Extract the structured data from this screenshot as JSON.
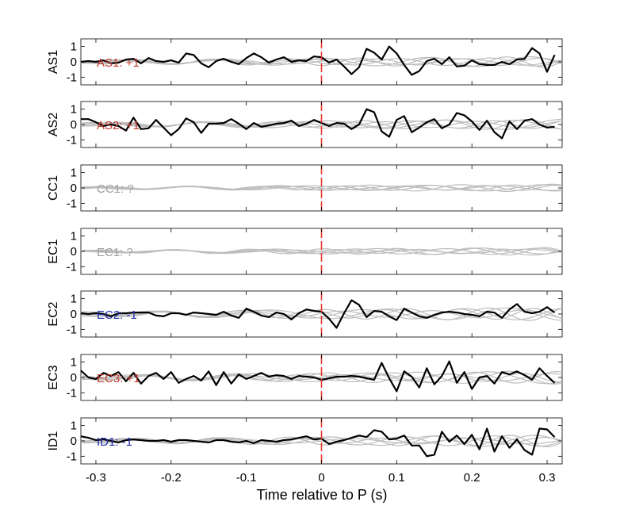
{
  "chart_data": {
    "type": "line",
    "xlabel": "Time relative to P (s)",
    "xlim": [
      -0.32,
      0.32
    ],
    "xticks": [
      -0.3,
      -0.2,
      -0.1,
      0,
      0.1,
      0.2,
      0.3
    ],
    "xtick_labels": [
      "-0.3",
      "-0.2",
      "-0.1",
      "0",
      "0.1",
      "0.2",
      "0.3"
    ],
    "ylim": [
      -1.5,
      1.5
    ],
    "yticks": [
      -1,
      0,
      1
    ],
    "ytick_labels": [
      "-1",
      "0",
      "1"
    ],
    "marker_x": 0,
    "colors": {
      "trace": "#000000",
      "background_traces": "#bdbdbd",
      "marker": "#e8392b",
      "positive": "#c0392b",
      "negative": "#1f2fb0",
      "unknown": "#9e9e9e"
    },
    "panels": [
      {
        "station": "AS1",
        "annotation": "AS1: +1",
        "label_color": "#c0392b",
        "x": [
          -0.32,
          -0.31,
          -0.3,
          -0.29,
          -0.28,
          -0.27,
          -0.26,
          -0.25,
          -0.24,
          -0.23,
          -0.22,
          -0.21,
          -0.2,
          -0.19,
          -0.18,
          -0.17,
          -0.16,
          -0.15,
          -0.14,
          -0.13,
          -0.12,
          -0.11,
          -0.1,
          -0.09,
          -0.08,
          -0.07,
          -0.06,
          -0.05,
          -0.04,
          -0.03,
          -0.02,
          -0.01,
          0,
          0.01,
          0.02,
          0.03,
          0.04,
          0.05,
          0.06,
          0.07,
          0.08,
          0.09,
          0.1,
          0.11,
          0.12,
          0.13,
          0.14,
          0.15,
          0.16,
          0.17,
          0.18,
          0.19,
          0.2,
          0.21,
          0.22,
          0.23,
          0.24,
          0.25,
          0.26,
          0.27,
          0.28,
          0.29,
          0.3,
          0.31
        ],
        "y": [
          0.0,
          0.05,
          0.0,
          0.1,
          -0.1,
          -0.05,
          0.15,
          0.2,
          -0.1,
          0.25,
          0.05,
          0.0,
          0.1,
          -0.05,
          0.55,
          0.45,
          -0.1,
          -0.35,
          0.05,
          0.2,
          0.0,
          -0.15,
          0.25,
          0.55,
          0.3,
          -0.05,
          0.15,
          0.3,
          0.0,
          0.1,
          0.05,
          0.35,
          0.3,
          -0.05,
          0.15,
          -0.3,
          -0.8,
          -0.35,
          0.85,
          0.6,
          0.15,
          1.0,
          0.55,
          -0.2,
          -0.85,
          -0.6,
          0.05,
          0.2,
          -0.15,
          0.3,
          -0.3,
          -0.25,
          0.1,
          -0.15,
          -0.2,
          -0.2,
          0.0,
          -0.15,
          0.15,
          0.2,
          0.9,
          0.55,
          -0.65,
          0.45
        ],
        "bg_amplitude": 0.35
      },
      {
        "station": "AS2",
        "annotation": "AS2: +1",
        "label_color": "#c0392b",
        "x": [
          -0.32,
          -0.31,
          -0.3,
          -0.29,
          -0.28,
          -0.27,
          -0.26,
          -0.25,
          -0.24,
          -0.23,
          -0.22,
          -0.21,
          -0.2,
          -0.19,
          -0.18,
          -0.17,
          -0.16,
          -0.15,
          -0.14,
          -0.13,
          -0.12,
          -0.11,
          -0.1,
          -0.09,
          -0.08,
          -0.07,
          -0.06,
          -0.05,
          -0.04,
          -0.03,
          -0.02,
          -0.01,
          0,
          0.01,
          0.02,
          0.03,
          0.04,
          0.05,
          0.06,
          0.07,
          0.08,
          0.09,
          0.1,
          0.11,
          0.12,
          0.13,
          0.14,
          0.15,
          0.16,
          0.17,
          0.18,
          0.19,
          0.2,
          0.21,
          0.22,
          0.23,
          0.24,
          0.25,
          0.26,
          0.27,
          0.28,
          0.29,
          0.3,
          0.31
        ],
        "y": [
          0.35,
          0.35,
          0.15,
          -0.1,
          0.0,
          -0.1,
          -0.4,
          0.45,
          -0.3,
          -0.25,
          0.3,
          -0.2,
          -0.7,
          -0.3,
          0.4,
          0.15,
          -0.55,
          0.05,
          0.05,
          0.1,
          0.35,
          0.05,
          -0.3,
          0.1,
          -0.15,
          -0.05,
          0.05,
          0.1,
          0.25,
          -0.1,
          0.05,
          0.3,
          0.1,
          -0.1,
          0.1,
          0.05,
          -0.3,
          0.0,
          1.0,
          0.8,
          -0.45,
          -0.8,
          0.3,
          0.55,
          -0.5,
          -0.2,
          0.15,
          0.35,
          -0.25,
          0.0,
          0.75,
          0.6,
          0.2,
          -0.35,
          0.25,
          -0.5,
          -0.9,
          0.2,
          -0.3,
          0.25,
          0.35,
          0.0,
          -0.2,
          -0.15
        ],
        "bg_amplitude": 0.35
      },
      {
        "station": "CC1",
        "annotation": "CC1: ?",
        "label_color": "#9e9e9e",
        "x": [],
        "y": [],
        "bg_amplitude": 0.25
      },
      {
        "station": "EC1",
        "annotation": "EC1: ?",
        "label_color": "#9e9e9e",
        "x": [],
        "y": [],
        "bg_amplitude": 0.25
      },
      {
        "station": "EC2",
        "annotation": "EC2: -1",
        "label_color": "#1f2fb0",
        "x": [
          -0.32,
          -0.31,
          -0.3,
          -0.29,
          -0.28,
          -0.27,
          -0.26,
          -0.25,
          -0.24,
          -0.23,
          -0.22,
          -0.21,
          -0.2,
          -0.19,
          -0.18,
          -0.17,
          -0.16,
          -0.15,
          -0.14,
          -0.13,
          -0.12,
          -0.11,
          -0.1,
          -0.09,
          -0.08,
          -0.07,
          -0.06,
          -0.05,
          -0.04,
          -0.03,
          -0.02,
          -0.01,
          0,
          0.01,
          0.02,
          0.03,
          0.04,
          0.05,
          0.06,
          0.07,
          0.08,
          0.09,
          0.1,
          0.11,
          0.12,
          0.13,
          0.14,
          0.15,
          0.16,
          0.17,
          0.18,
          0.19,
          0.2,
          0.21,
          0.22,
          0.23,
          0.24,
          0.25,
          0.26,
          0.27,
          0.28,
          0.29,
          0.3,
          0.31
        ],
        "y": [
          0.05,
          0.0,
          0.05,
          0.0,
          -0.15,
          0.05,
          0.05,
          0.1,
          0.1,
          0.1,
          -0.1,
          -0.15,
          0.05,
          0.05,
          -0.05,
          0.1,
          0.05,
          0.0,
          -0.05,
          0.15,
          -0.1,
          -0.25,
          0.35,
          0.15,
          -0.1,
          -0.2,
          0.1,
          0.0,
          -0.35,
          0.05,
          0.3,
          0.2,
          0.15,
          -0.3,
          -0.9,
          0.05,
          0.9,
          0.6,
          -0.2,
          0.2,
          0.15,
          -0.15,
          -0.4,
          0.35,
          0.1,
          -0.15,
          -0.25,
          -0.05,
          0.1,
          0.15,
          0.1,
          0.0,
          -0.05,
          -0.15,
          0.15,
          0.1,
          -0.25,
          0.3,
          0.65,
          0.15,
          0.05,
          0.15,
          0.45,
          0.1
        ],
        "bg_amplitude": 0.45
      },
      {
        "station": "EC3",
        "annotation": "EC3: +1",
        "label_color": "#c0392b",
        "x": [
          -0.32,
          -0.31,
          -0.3,
          -0.29,
          -0.28,
          -0.27,
          -0.26,
          -0.25,
          -0.24,
          -0.23,
          -0.22,
          -0.21,
          -0.2,
          -0.19,
          -0.18,
          -0.17,
          -0.16,
          -0.15,
          -0.14,
          -0.13,
          -0.12,
          -0.11,
          -0.1,
          -0.09,
          -0.08,
          -0.07,
          -0.06,
          -0.05,
          -0.04,
          -0.03,
          -0.02,
          -0.01,
          0,
          0.01,
          0.02,
          0.03,
          0.04,
          0.05,
          0.06,
          0.07,
          0.08,
          0.09,
          0.1,
          0.11,
          0.12,
          0.13,
          0.14,
          0.15,
          0.16,
          0.17,
          0.18,
          0.19,
          0.2,
          0.21,
          0.22,
          0.23,
          0.24,
          0.25,
          0.26,
          0.27,
          0.28,
          0.29,
          0.3,
          0.31
        ],
        "y": [
          0.45,
          0.0,
          -0.1,
          0.3,
          0.1,
          0.35,
          -0.25,
          0.3,
          -0.4,
          0.1,
          0.3,
          -0.1,
          0.35,
          -0.35,
          -0.1,
          0.1,
          -0.2,
          0.4,
          -0.5,
          0.35,
          -0.4,
          0.2,
          -0.1,
          0.1,
          0.3,
          0.05,
          0.15,
          0.1,
          -0.1,
          0.1,
          0.05,
          0.0,
          -0.15,
          -0.05,
          0.05,
          0.05,
          0.1,
          0.05,
          -0.05,
          -0.15,
          0.95,
          -0.05,
          -0.9,
          0.4,
          0.05,
          -0.65,
          0.6,
          -0.45,
          0.1,
          1.05,
          -0.35,
          0.35,
          -0.75,
          0.0,
          0.1,
          -0.4,
          0.35,
          0.2,
          0.4,
          0.15,
          -0.15,
          0.6,
          0.1,
          -0.35
        ],
        "bg_amplitude": 0.45
      },
      {
        "station": "ID1",
        "annotation": "ID1: -1",
        "label_color": "#1f2fb0",
        "x": [
          -0.32,
          -0.31,
          -0.3,
          -0.29,
          -0.28,
          -0.27,
          -0.26,
          -0.25,
          -0.24,
          -0.23,
          -0.22,
          -0.21,
          -0.2,
          -0.19,
          -0.18,
          -0.17,
          -0.16,
          -0.15,
          -0.14,
          -0.13,
          -0.12,
          -0.11,
          -0.1,
          -0.09,
          -0.08,
          -0.07,
          -0.06,
          -0.05,
          -0.04,
          -0.03,
          -0.02,
          -0.01,
          0,
          0.01,
          0.02,
          0.03,
          0.04,
          0.05,
          0.06,
          0.07,
          0.08,
          0.09,
          0.1,
          0.11,
          0.12,
          0.13,
          0.14,
          0.15,
          0.16,
          0.17,
          0.18,
          0.19,
          0.2,
          0.21,
          0.22,
          0.23,
          0.24,
          0.25,
          0.26,
          0.27,
          0.28,
          0.29,
          0.3,
          0.31
        ],
        "y": [
          0.3,
          0.2,
          0.05,
          0.1,
          0.0,
          -0.1,
          0.05,
          0.1,
          0.05,
          0.0,
          0.0,
          0.05,
          -0.05,
          0.05,
          0.05,
          0.0,
          -0.05,
          -0.1,
          0.05,
          0.05,
          -0.05,
          -0.1,
          0.0,
          -0.15,
          0.05,
          0.0,
          -0.05,
          0.05,
          0.1,
          0.2,
          0.3,
          0.1,
          0.15,
          -0.2,
          -0.05,
          0.05,
          0.2,
          0.35,
          0.25,
          0.7,
          0.6,
          0.1,
          0.15,
          0.35,
          -0.3,
          -0.3,
          -1.0,
          -0.9,
          0.6,
          -0.05,
          0.35,
          -0.2,
          0.4,
          -0.55,
          0.8,
          -0.7,
          0.3,
          -0.45,
          0.1,
          -0.6,
          -0.9,
          0.8,
          0.75,
          0.25
        ],
        "bg_amplitude": 0.4
      }
    ]
  }
}
